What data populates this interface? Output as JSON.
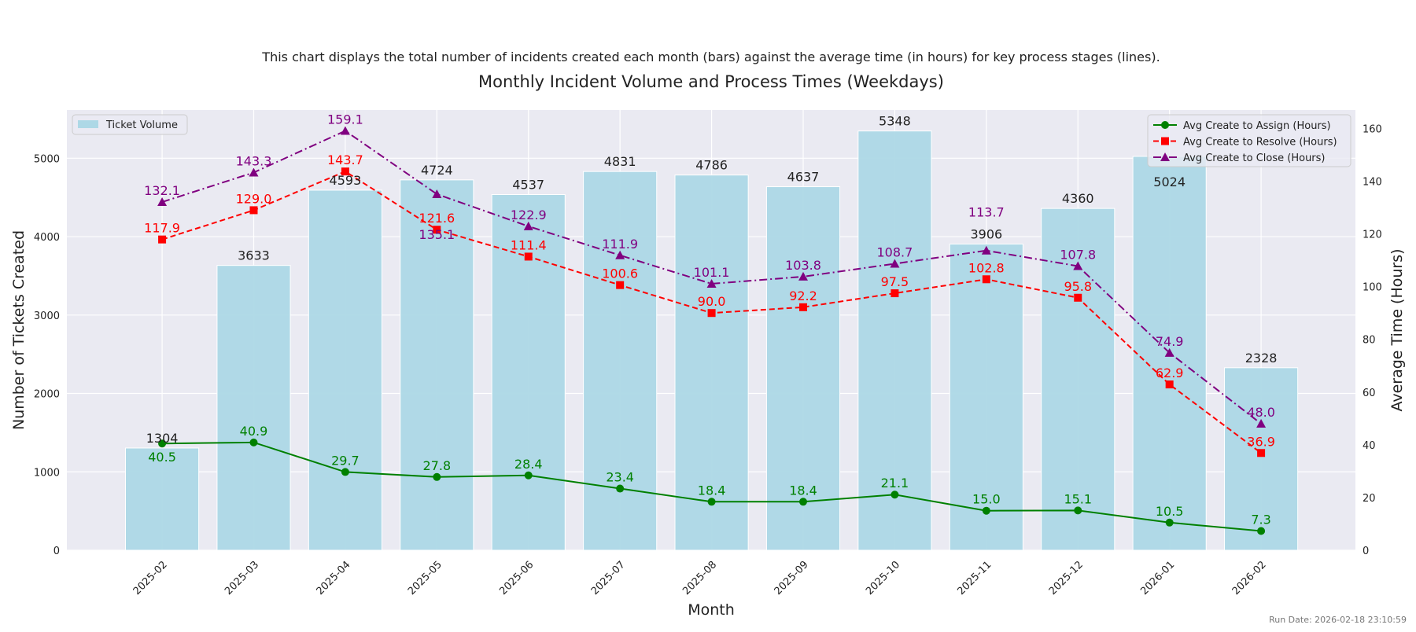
{
  "chart_data": {
    "type": "bar+line",
    "subtitle": "This chart displays the total number of incidents created each month (bars) against the average time (in hours) for key process stages (lines).",
    "title": "Monthly Incident Volume and Process Times (Weekdays)",
    "xlabel": "Month",
    "ylabel": "Number of Tickets Created",
    "y2label": "Average Time (Hours)",
    "categories": [
      "2025-02",
      "2025-03",
      "2025-04",
      "2025-05",
      "2025-06",
      "2025-07",
      "2025-08",
      "2025-09",
      "2025-10",
      "2025-11",
      "2025-12",
      "2026-01",
      "2026-02"
    ],
    "ylim": [
      0,
      5615
    ],
    "yticks": [
      0,
      1000,
      2000,
      3000,
      4000,
      5000
    ],
    "y2lim": [
      0,
      167
    ],
    "y2ticks": [
      0,
      20,
      40,
      60,
      80,
      100,
      120,
      140,
      160
    ],
    "grid": true,
    "bars": {
      "name": "Ticket Volume",
      "color": "#add8e6",
      "values": [
        1304,
        3633,
        4593,
        4724,
        4537,
        4831,
        4786,
        4637,
        5348,
        3906,
        4360,
        5024,
        2328
      ],
      "legend": "top-left"
    },
    "series": [
      {
        "name": "Avg Create to Assign (Hours)",
        "color": "#008000",
        "marker": "circle",
        "dash": "solid",
        "values": [
          40.5,
          40.9,
          29.7,
          27.8,
          28.4,
          23.4,
          18.4,
          18.4,
          21.1,
          15.0,
          15.1,
          10.5,
          7.3
        ]
      },
      {
        "name": "Avg Create to Resolve (Hours)",
        "color": "#ff0000",
        "marker": "square",
        "dash": "dashed",
        "values": [
          117.9,
          129.0,
          143.7,
          121.6,
          111.4,
          100.6,
          90.0,
          92.2,
          97.5,
          102.8,
          95.8,
          62.9,
          36.9
        ]
      },
      {
        "name": "Avg Create to Close (Hours)",
        "color": "#800080",
        "marker": "triangle",
        "dash": "dashdot",
        "values": [
          132.1,
          143.3,
          159.1,
          135.1,
          122.9,
          111.9,
          101.1,
          103.8,
          108.7,
          113.7,
          107.8,
          74.9,
          48.0
        ]
      }
    ],
    "lines_legend": "top-right"
  },
  "footer": {
    "run_date": "Run Date: 2026-02-18 23:10:59"
  }
}
